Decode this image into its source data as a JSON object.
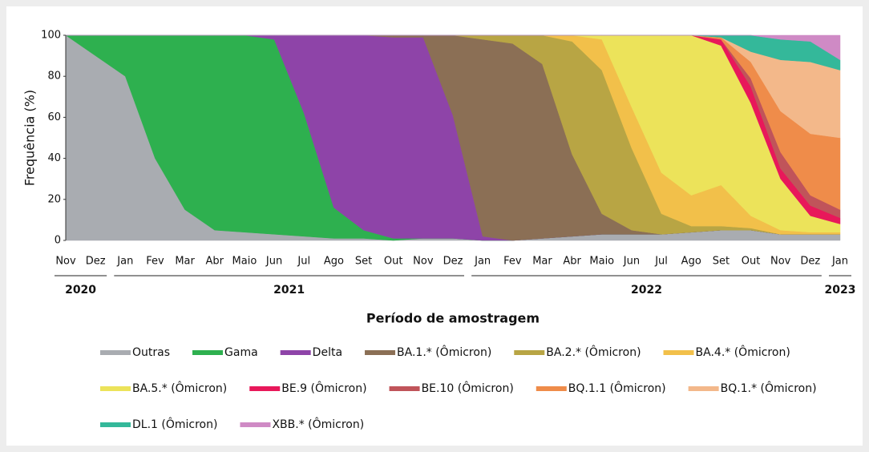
{
  "chart_data": {
    "type": "stacked_area",
    "y_label": "Frequência (%)",
    "x_label": "Período de amostragem",
    "categories": [
      "Nov",
      "Dez",
      "Jan",
      "Fev",
      "Mar",
      "Abr",
      "Maio",
      "Jun",
      "Jul",
      "Ago",
      "Set",
      "Out",
      "Nov",
      "Dez",
      "Jan",
      "Fev",
      "Mar",
      "Abr",
      "Maio",
      "Jun",
      "Jul",
      "Ago",
      "Set",
      "Out",
      "Nov",
      "Dez",
      "Jan"
    ],
    "years": [
      "2020",
      "2021",
      "2022",
      "2023"
    ],
    "ylim": [
      0,
      100
    ],
    "yticks": [
      0,
      20,
      40,
      60,
      80,
      100
    ],
    "series": [
      {
        "name": "Outras",
        "color": "#a9acb1",
        "values": [
          100,
          90,
          80,
          40,
          15,
          5,
          4,
          3,
          2,
          1,
          1,
          0,
          1,
          1,
          0,
          0,
          1,
          2,
          3,
          3,
          3,
          4,
          5,
          5,
          3,
          3,
          3
        ]
      },
      {
        "name": "Gama",
        "color": "#2eb04f",
        "values": [
          0,
          10,
          20,
          60,
          85,
          95,
          96,
          95,
          60,
          15,
          4,
          1,
          0,
          0,
          0,
          0,
          0,
          0,
          0,
          0,
          0,
          0,
          0,
          0,
          0,
          0,
          0
        ]
      },
      {
        "name": "Delta",
        "color": "#8e44a8",
        "values": [
          0,
          0,
          0,
          0,
          0,
          0,
          0,
          2,
          38,
          84,
          95,
          98,
          98,
          60,
          2,
          0,
          0,
          0,
          0,
          0,
          0,
          0,
          0,
          0,
          0,
          0,
          0
        ]
      },
      {
        "name": "BA.1.* (Ômicron)",
        "color": "#8b6f55",
        "values": [
          0,
          0,
          0,
          0,
          0,
          0,
          0,
          0,
          0,
          0,
          0,
          1,
          1,
          39,
          96,
          96,
          85,
          40,
          10,
          2,
          0,
          0,
          0,
          0,
          0,
          0,
          0
        ]
      },
      {
        "name": "BA.2.* (Ômicron)",
        "color": "#b8a544",
        "values": [
          0,
          0,
          0,
          0,
          0,
          0,
          0,
          0,
          0,
          0,
          0,
          0,
          0,
          0,
          2,
          4,
          14,
          55,
          70,
          40,
          10,
          3,
          2,
          1,
          0,
          0,
          0
        ]
      },
      {
        "name": "BA.4.* (Ômicron)",
        "color": "#f2c04a",
        "values": [
          0,
          0,
          0,
          0,
          0,
          0,
          0,
          0,
          0,
          0,
          0,
          0,
          0,
          0,
          0,
          0,
          0,
          3,
          15,
          20,
          20,
          15,
          20,
          6,
          2,
          1,
          1
        ]
      },
      {
        "name": "BA.5.* (Ômicron)",
        "color": "#ece35a",
        "values": [
          0,
          0,
          0,
          0,
          0,
          0,
          0,
          0,
          0,
          0,
          0,
          0,
          0,
          0,
          0,
          0,
          0,
          0,
          2,
          35,
          67,
          78,
          68,
          55,
          25,
          8,
          4
        ]
      },
      {
        "name": "BE.9 (Ômicron)",
        "color": "#e8185a",
        "values": [
          0,
          0,
          0,
          0,
          0,
          0,
          0,
          0,
          0,
          0,
          0,
          0,
          0,
          0,
          0,
          0,
          0,
          0,
          0,
          0,
          0,
          0,
          3,
          8,
          5,
          5,
          3
        ]
      },
      {
        "name": "BE.10 (Ômicron)",
        "color": "#c0545a",
        "values": [
          0,
          0,
          0,
          0,
          0,
          0,
          0,
          0,
          0,
          0,
          0,
          0,
          0,
          0,
          0,
          0,
          0,
          0,
          0,
          0,
          0,
          0,
          0,
          4,
          8,
          5,
          4
        ]
      },
      {
        "name": "BQ.1.1 (Ômicron)",
        "color": "#ef8c4a",
        "values": [
          0,
          0,
          0,
          0,
          0,
          0,
          0,
          0,
          0,
          0,
          0,
          0,
          0,
          0,
          0,
          0,
          0,
          0,
          0,
          0,
          0,
          0,
          1,
          8,
          20,
          30,
          35
        ]
      },
      {
        "name": "BQ.1.* (Ômicron)",
        "color": "#f3b88a",
        "values": [
          0,
          0,
          0,
          0,
          0,
          0,
          0,
          0,
          0,
          0,
          0,
          0,
          0,
          0,
          0,
          0,
          0,
          0,
          0,
          0,
          0,
          0,
          0,
          5,
          25,
          35,
          33
        ]
      },
      {
        "name": "DL.1 (Ômicron)",
        "color": "#34b89a",
        "values": [
          0,
          0,
          0,
          0,
          0,
          0,
          0,
          0,
          0,
          0,
          0,
          0,
          0,
          0,
          0,
          0,
          0,
          0,
          0,
          0,
          0,
          0,
          1,
          8,
          10,
          10,
          5
        ]
      },
      {
        "name": "XBB.* (Ômicron)",
        "color": "#cf8ac5",
        "values": [
          0,
          0,
          0,
          0,
          0,
          0,
          0,
          0,
          0,
          0,
          0,
          0,
          0,
          0,
          0,
          0,
          0,
          0,
          0,
          0,
          0,
          0,
          0,
          0,
          2,
          3,
          12
        ]
      }
    ]
  }
}
